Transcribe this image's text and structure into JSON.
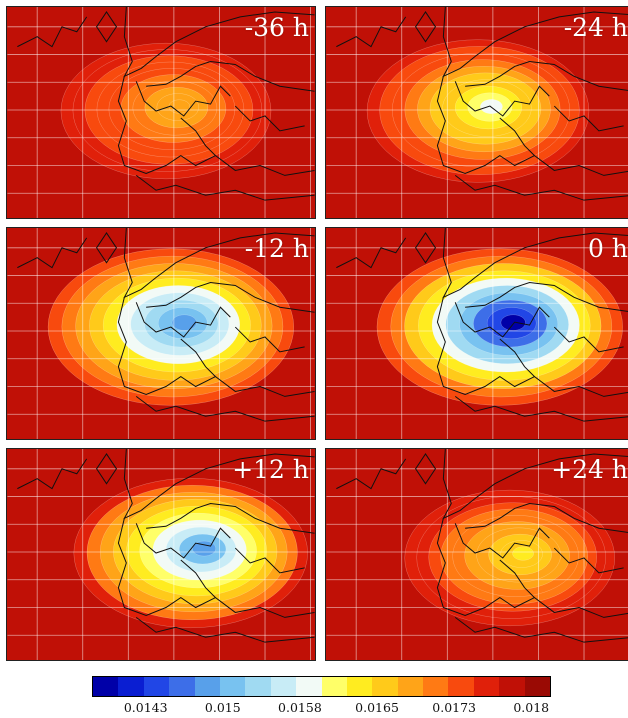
{
  "panels": [
    {
      "label": "-36 h",
      "anomaly": 0.25,
      "extent": 0.55
    },
    {
      "label": "-24 h",
      "anomaly": 0.45,
      "extent": 0.6
    },
    {
      "label": "-12 h",
      "anomaly": 0.75,
      "extent": 0.7
    },
    {
      "label": "0 h",
      "anomaly": 0.95,
      "extent": 0.7
    },
    {
      "label": "+12 h",
      "anomaly": 0.7,
      "extent": 0.65
    },
    {
      "label": "+24 h",
      "anomaly": 0.35,
      "extent": 0.55
    }
  ],
  "colorbar": {
    "colors": [
      "#0000a8",
      "#0a1ed2",
      "#2146e6",
      "#3d6ee8",
      "#58a0ea",
      "#78c2f0",
      "#a0daf2",
      "#c8ecf6",
      "#f2faf6",
      "#ffff68",
      "#ffec20",
      "#ffca1a",
      "#ffa418",
      "#ff7a14",
      "#f84a0e",
      "#e0200a",
      "#c01006",
      "#9a0a04"
    ],
    "tick_labels": [
      "0.0143",
      "0.015",
      "0.0158",
      "0.0165",
      "0.0173",
      "0.018"
    ],
    "tick_positions": [
      0.117,
      0.285,
      0.453,
      0.621,
      0.789,
      0.957
    ]
  }
}
